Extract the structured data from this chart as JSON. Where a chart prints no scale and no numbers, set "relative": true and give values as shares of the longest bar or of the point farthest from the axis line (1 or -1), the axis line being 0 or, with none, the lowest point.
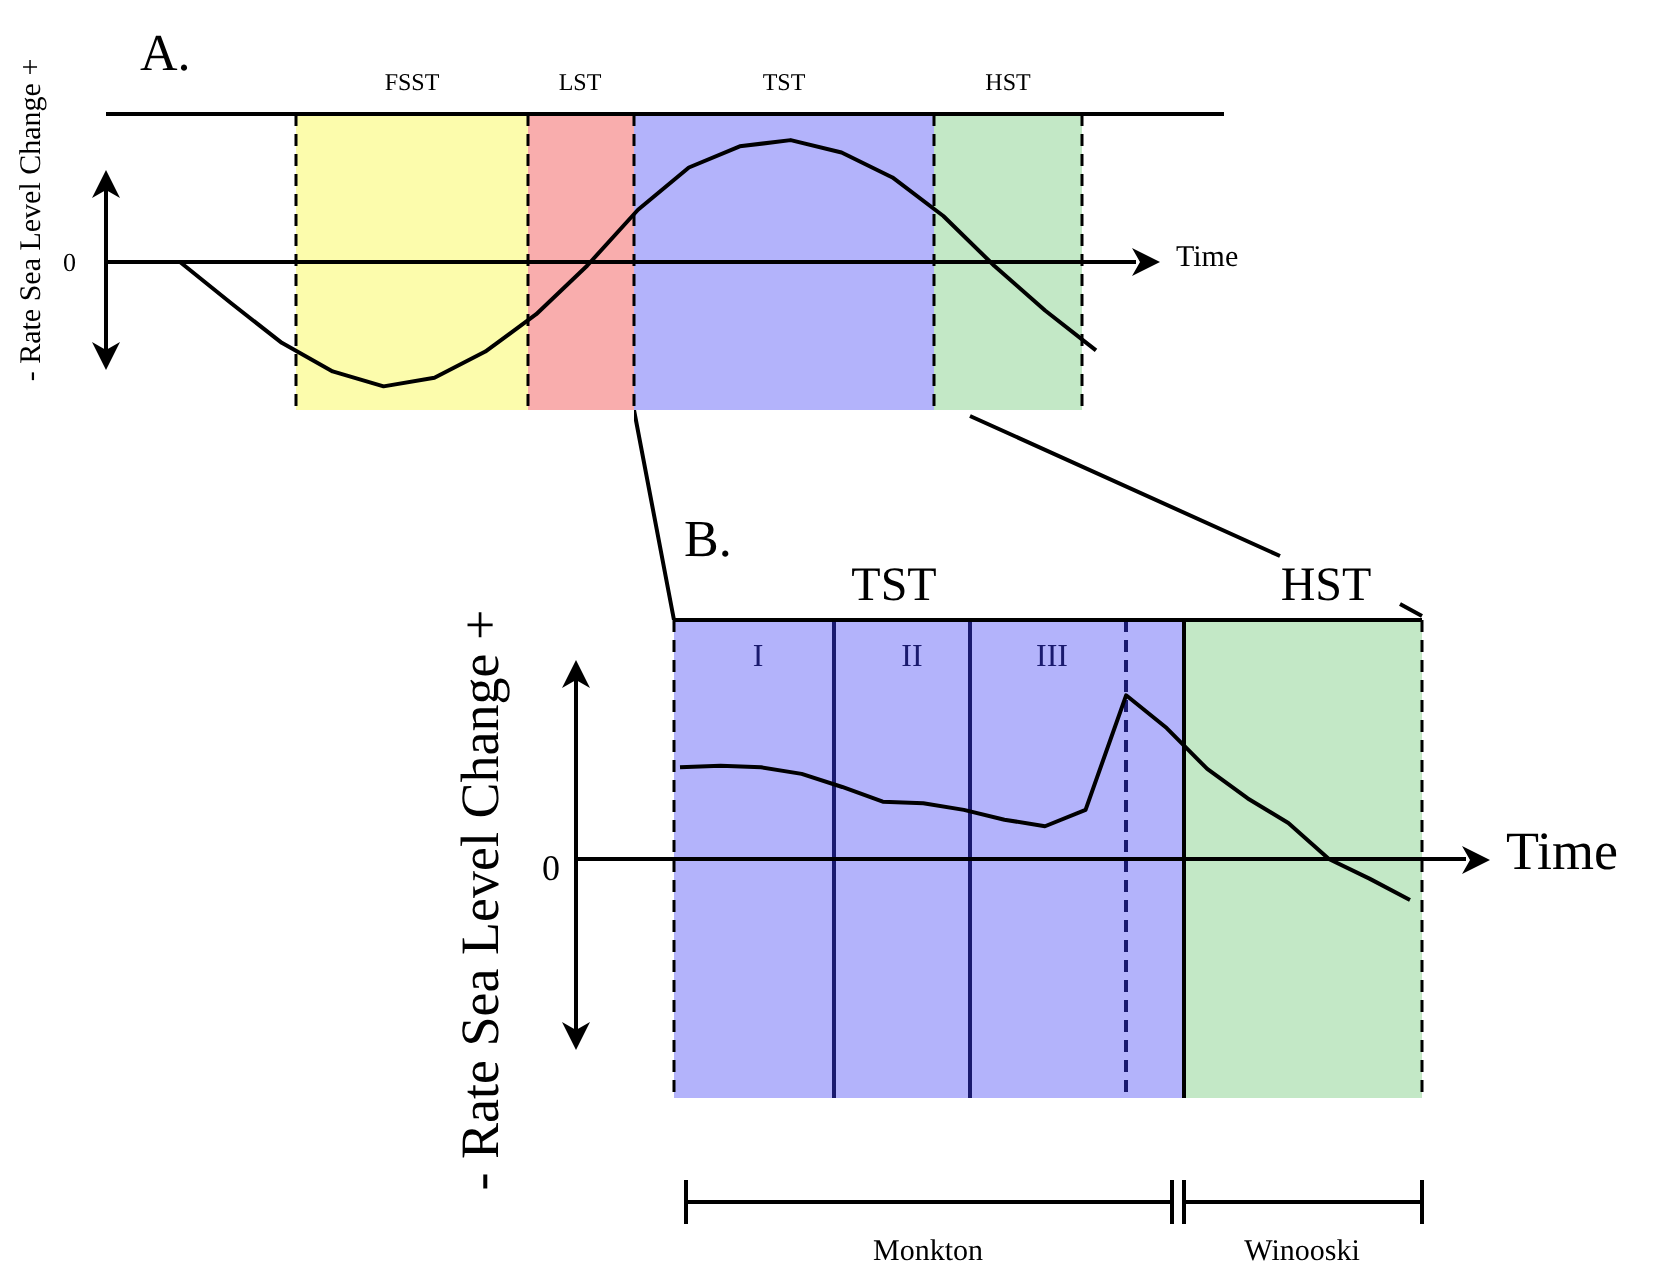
{
  "chart_data": [
    {
      "type": "line",
      "title": "A.",
      "xlabel": "Time",
      "ylabel": "- Rate Sea Level Change +",
      "relative": true,
      "line_style": "solid",
      "marker": "none",
      "annotations": [
        "FSST",
        "LST",
        "TST",
        "HST",
        "0"
      ],
      "categories": [
        null,
        null,
        null,
        null,
        null,
        null,
        null,
        null,
        null,
        null,
        null,
        null,
        null,
        null,
        null,
        null,
        null,
        null,
        null
      ],
      "series": [
        {
          "color": "#000000",
          "values": [
            0,
            -0.33,
            -0.65,
            -0.88,
            -1,
            -0.93,
            -0.72,
            -0.42,
            -0.03,
            0.42,
            0.76,
            0.93,
            0.98,
            0.88,
            0.68,
            0.37,
            -0.03,
            -0.39,
            -0.71
          ]
        }
      ]
    },
    {
      "type": "line",
      "title": "B.",
      "xlabel": "Time",
      "ylabel": "- Rate Sea Level Change +",
      "relative": true,
      "line_style": "solid",
      "marker": "none",
      "annotations": [
        "TST",
        "HST",
        "I",
        "II",
        "III",
        "Monkton",
        "Winooski",
        "0"
      ],
      "categories": [
        null,
        null,
        null,
        null,
        null,
        null,
        null,
        null,
        null,
        null,
        null,
        null,
        null,
        null,
        null,
        null,
        null,
        null,
        null
      ],
      "series": [
        {
          "color": "#000000",
          "values": [
            0.56,
            0.57,
            0.56,
            0.52,
            0.44,
            0.35,
            0.34,
            0.3,
            0.24,
            0.2,
            0.3,
            1,
            0.8,
            0.55,
            0.37,
            0.22,
            0,
            -0.12,
            -0.25
          ]
        }
      ]
    }
  ]
}
